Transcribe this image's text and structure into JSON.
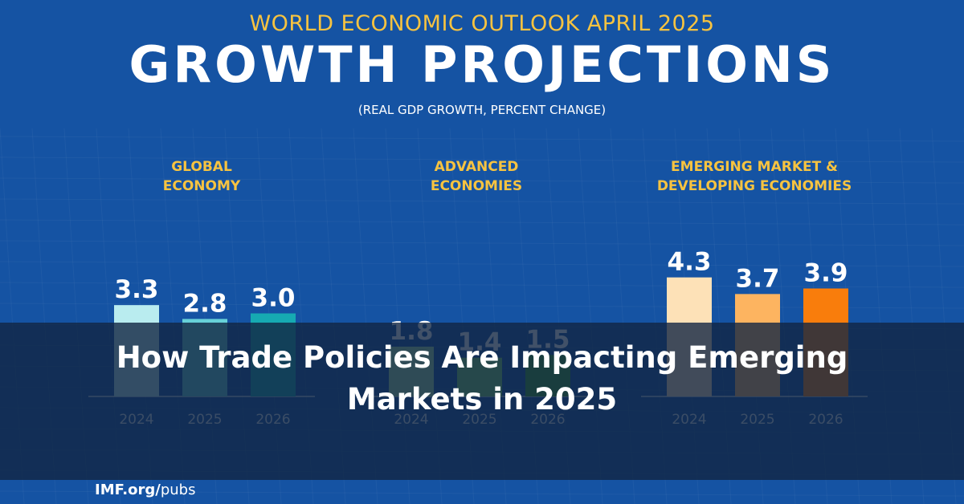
{
  "header": {
    "pretitle": "WORLD ECONOMIC OUTLOOK APRIL 2025",
    "title": "GROWTH PROJECTIONS",
    "subtitle": "(REAL GDP GROWTH, PERCENT CHANGE)"
  },
  "overlay": {
    "headline": "How Trade Policies Are Impacting Emerging Markets in 2025"
  },
  "footer": {
    "brand": "IMF.org/",
    "path": "pubs"
  },
  "colors": {
    "background": "#1553a3",
    "accent": "#f7c340",
    "global": [
      "#b9ecef",
      "#67d1d8",
      "#16aab2"
    ],
    "advanced": [
      "#a6e0a3",
      "#79cf6e",
      "#3a9a2f"
    ],
    "emerging": [
      "#fde1b7",
      "#fdb460",
      "#f97d0c"
    ]
  },
  "chart_data": [
    {
      "type": "bar",
      "title": "GLOBAL\nECONOMY",
      "categories": [
        "2024",
        "2025",
        "2026"
      ],
      "values": [
        3.3,
        2.8,
        3.0
      ],
      "value_labels": [
        "3.3",
        "2.8",
        "3.0"
      ],
      "xlabel": "",
      "ylabel": "",
      "ylim": [
        0,
        5
      ],
      "grid": false
    },
    {
      "type": "bar",
      "title": "ADVANCED\nECONOMIES",
      "categories": [
        "2024",
        "2025",
        "2026"
      ],
      "values": [
        1.8,
        1.4,
        1.5
      ],
      "value_labels": [
        "1.8",
        "1.4",
        "1.5"
      ],
      "xlabel": "",
      "ylabel": "",
      "ylim": [
        0,
        5
      ],
      "grid": false
    },
    {
      "type": "bar",
      "title": "EMERGING MARKET &\nDEVELOPING ECONOMIES",
      "categories": [
        "2024",
        "2025",
        "2026"
      ],
      "values": [
        4.3,
        3.7,
        3.9
      ],
      "value_labels": [
        "4.3",
        "3.7",
        "3.9"
      ],
      "xlabel": "",
      "ylabel": "",
      "ylim": [
        0,
        5
      ],
      "grid": false
    }
  ]
}
